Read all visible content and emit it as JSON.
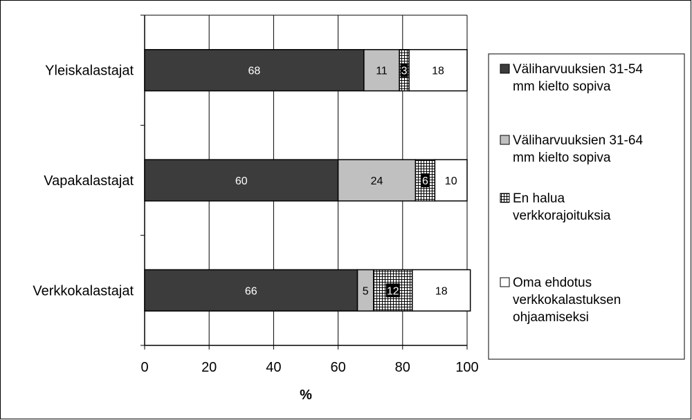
{
  "chart_data": {
    "type": "bar",
    "orientation": "horizontal",
    "stacked": true,
    "categories": [
      "Yleiskalastajat",
      "Vapakalastajat",
      "Verkkokalastajat"
    ],
    "series": [
      {
        "name": "Väliharvuuksien 31-54 mm kielto sopiva",
        "values": [
          68,
          60,
          66
        ],
        "color": "#3c3c3c",
        "pattern": "solid"
      },
      {
        "name": "Väliharvuuksien 31-64 mm kielto sopiva",
        "values": [
          11,
          24,
          5
        ],
        "color": "#c0c0c0",
        "pattern": "solid"
      },
      {
        "name": "En halua verkkorajoituksia",
        "values": [
          3,
          6,
          12
        ],
        "color": "#000000",
        "pattern": "grid"
      },
      {
        "name": "Oma ehdotus verkkokalastuksen ohjaamiseksi",
        "values": [
          18,
          10,
          18
        ],
        "color": "#ffffff",
        "pattern": "solid"
      }
    ],
    "xlabel": "%",
    "xlim": [
      0,
      100
    ],
    "xticks": [
      "0",
      "20",
      "40",
      "60",
      "80",
      "100"
    ],
    "grid": true,
    "legend_position": "right"
  }
}
